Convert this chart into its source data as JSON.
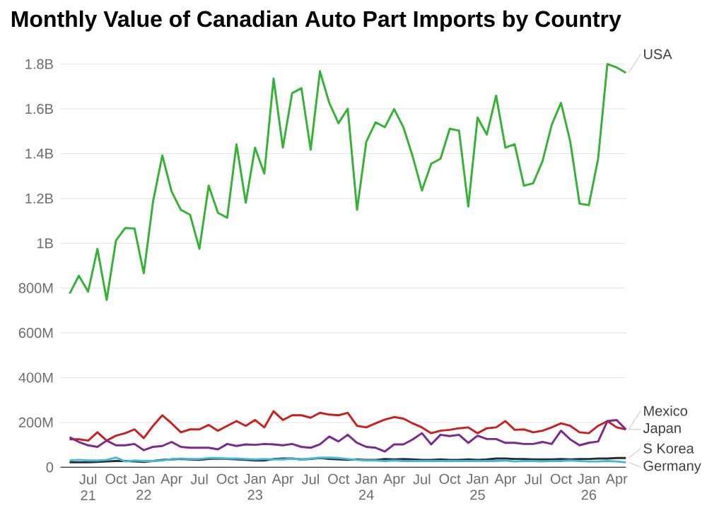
{
  "chart_data": {
    "type": "line",
    "title": "Monthly Value of Canadian Auto Part Imports by Country",
    "x": [
      "2021-05",
      "2021-06",
      "2021-07",
      "2021-08",
      "2021-09",
      "2021-10",
      "2021-11",
      "2021-12",
      "2022-01",
      "2022-02",
      "2022-03",
      "2022-04",
      "2022-05",
      "2022-06",
      "2022-07",
      "2022-08",
      "2022-09",
      "2022-10",
      "2022-11",
      "2022-12",
      "2023-01",
      "2023-02",
      "2023-03",
      "2023-04",
      "2023-05",
      "2023-06",
      "2023-07",
      "2023-08",
      "2023-09",
      "2023-10",
      "2023-11",
      "2023-12",
      "2024-01",
      "2024-02",
      "2024-03",
      "2024-04",
      "2024-05",
      "2024-06",
      "2024-07",
      "2024-08",
      "2024-09",
      "2024-10",
      "2024-11",
      "2024-12",
      "2025-01",
      "2025-02",
      "2025-03",
      "2025-04",
      "2025-05",
      "2025-06",
      "2025-07",
      "2025-08",
      "2025-09",
      "2025-10",
      "2025-11",
      "2025-12",
      "2026-01",
      "2026-02",
      "2026-03",
      "2026-04",
      "2026-05"
    ],
    "series": [
      {
        "name": "USA",
        "color": "#33b233",
        "values": [
          775000000,
          855000000,
          784000000,
          975000000,
          747000000,
          1012000000,
          1068000000,
          1066000000,
          866000000,
          1186000000,
          1392000000,
          1231000000,
          1149000000,
          1127000000,
          975000000,
          1257000000,
          1136000000,
          1114000000,
          1442000000,
          1181000000,
          1427000000,
          1311000000,
          1735000000,
          1427000000,
          1670000000,
          1692000000,
          1418000000,
          1768000000,
          1627000000,
          1536000000,
          1601000000,
          1149000000,
          1453000000,
          1540000000,
          1518000000,
          1599000000,
          1518000000,
          1388000000,
          1236000000,
          1355000000,
          1377000000,
          1511000000,
          1503000000,
          1164000000,
          1561000000,
          1485000000,
          1659000000,
          1427000000,
          1442000000,
          1257000000,
          1268000000,
          1366000000,
          1529000000,
          1627000000,
          1453000000,
          1177000000,
          1170000000,
          1377000000,
          1800000000,
          1785000000,
          1761000000
        ]
      },
      {
        "name": "Mexico",
        "color": "#c91f1f",
        "values": [
          125000000,
          125000000,
          119000000,
          156000000,
          119000000,
          141000000,
          152000000,
          169000000,
          130000000,
          185000000,
          232000000,
          196000000,
          156000000,
          169000000,
          169000000,
          189000000,
          163000000,
          185000000,
          206000000,
          185000000,
          211000000,
          178000000,
          250000000,
          211000000,
          232000000,
          232000000,
          221000000,
          243000000,
          235000000,
          232000000,
          243000000,
          185000000,
          178000000,
          196000000,
          213000000,
          224000000,
          217000000,
          196000000,
          178000000,
          152000000,
          163000000,
          167000000,
          174000000,
          178000000,
          152000000,
          174000000,
          178000000,
          206000000,
          167000000,
          169000000,
          156000000,
          163000000,
          178000000,
          196000000,
          185000000,
          156000000,
          152000000,
          185000000,
          206000000,
          178000000,
          169000000
        ]
      },
      {
        "name": "Japan",
        "color": "#7a2a8c",
        "values": [
          134000000,
          113000000,
          98000000,
          91000000,
          119000000,
          98000000,
          98000000,
          104000000,
          76000000,
          91000000,
          95000000,
          113000000,
          91000000,
          87000000,
          87000000,
          87000000,
          80000000,
          104000000,
          95000000,
          102000000,
          100000000,
          104000000,
          102000000,
          98000000,
          104000000,
          91000000,
          87000000,
          102000000,
          137000000,
          115000000,
          145000000,
          109000000,
          91000000,
          87000000,
          70000000,
          102000000,
          102000000,
          124000000,
          152000000,
          102000000,
          145000000,
          139000000,
          145000000,
          109000000,
          141000000,
          126000000,
          126000000,
          109000000,
          109000000,
          104000000,
          104000000,
          113000000,
          104000000,
          163000000,
          124000000,
          98000000,
          109000000,
          115000000,
          206000000,
          211000000,
          169000000
        ]
      },
      {
        "name": "S Korea",
        "color": "#2b2b2b",
        "values": [
          22000000,
          22000000,
          22000000,
          24000000,
          26000000,
          28000000,
          28000000,
          26000000,
          24000000,
          28000000,
          33000000,
          35000000,
          37000000,
          35000000,
          33000000,
          37000000,
          39000000,
          37000000,
          35000000,
          33000000,
          30000000,
          30000000,
          37000000,
          39000000,
          39000000,
          35000000,
          37000000,
          41000000,
          37000000,
          35000000,
          33000000,
          35000000,
          33000000,
          33000000,
          37000000,
          35000000,
          37000000,
          35000000,
          33000000,
          33000000,
          35000000,
          33000000,
          33000000,
          35000000,
          33000000,
          35000000,
          39000000,
          39000000,
          37000000,
          37000000,
          35000000,
          35000000,
          35000000,
          37000000,
          35000000,
          37000000,
          37000000,
          39000000,
          39000000,
          41000000,
          41000000
        ]
      },
      {
        "name": "Germany",
        "color": "#45b8d8",
        "values": [
          30000000,
          33000000,
          30000000,
          30000000,
          33000000,
          43000000,
          26000000,
          30000000,
          28000000,
          28000000,
          30000000,
          37000000,
          39000000,
          37000000,
          37000000,
          41000000,
          41000000,
          39000000,
          39000000,
          37000000,
          35000000,
          37000000,
          35000000,
          35000000,
          39000000,
          35000000,
          39000000,
          43000000,
          43000000,
          41000000,
          37000000,
          33000000,
          30000000,
          30000000,
          28000000,
          30000000,
          28000000,
          28000000,
          28000000,
          28000000,
          28000000,
          28000000,
          28000000,
          28000000,
          28000000,
          28000000,
          28000000,
          30000000,
          26000000,
          28000000,
          28000000,
          26000000,
          28000000,
          28000000,
          30000000,
          28000000,
          26000000,
          26000000,
          28000000,
          26000000,
          22000000
        ]
      }
    ],
    "xlim": [
      "2021-04",
      "2026-05"
    ],
    "ylim": [
      0,
      1800000000
    ],
    "yticks": [
      0,
      {
        "value": 200000000,
        "label": "200M"
      },
      {
        "value": 400000000,
        "label": "400M"
      },
      {
        "value": 600000000,
        "label": "600M"
      },
      {
        "value": 800000000,
        "label": "800M"
      },
      {
        "value": 1000000000,
        "label": "1B"
      },
      {
        "value": 1200000000,
        "label": "1.2B"
      },
      {
        "value": 1400000000,
        "label": "1.4B"
      },
      {
        "value": 1600000000,
        "label": "1.6B"
      },
      {
        "value": 1800000000,
        "label": "1.8B"
      }
    ],
    "xticks": [
      {
        "value": "2021-07",
        "label": "Jul 21"
      },
      {
        "value": "2021-10",
        "label": "Oct"
      },
      {
        "value": "2022-01",
        "label": "Jan 22"
      },
      {
        "value": "2022-04",
        "label": "Apr"
      },
      {
        "value": "2022-07",
        "label": "Jul"
      },
      {
        "value": "2022-10",
        "label": "Oct"
      },
      {
        "value": "2023-01",
        "label": "Jan 23"
      },
      {
        "value": "2023-04",
        "label": "Apr"
      },
      {
        "value": "2023-07",
        "label": "Jul"
      },
      {
        "value": "2023-10",
        "label": "Oct"
      },
      {
        "value": "2024-01",
        "label": "Jan 24"
      },
      {
        "value": "2024-04",
        "label": "Apr"
      },
      {
        "value": "2024-07",
        "label": "Jul"
      },
      {
        "value": "2024-10",
        "label": "Oct"
      },
      {
        "value": "2025-01",
        "label": "Jan 25"
      },
      {
        "value": "2025-04",
        "label": "Apr"
      },
      {
        "value": "2025-07",
        "label": "Jul"
      },
      {
        "value": "2025-10",
        "label": "Oct"
      },
      {
        "value": "2026-01",
        "label": "Jan 26"
      },
      {
        "value": "2026-04",
        "label": "Apr"
      }
    ],
    "grid": "y",
    "marker": "none",
    "line_style": "solid",
    "legend": false
  }
}
